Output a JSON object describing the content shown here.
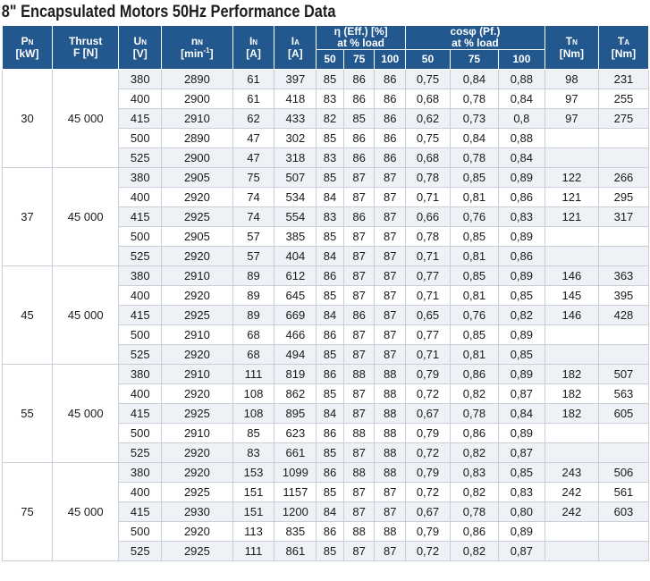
{
  "title": "8\" Encapsulated Motors 50Hz Performance Data",
  "header": {
    "pn": "P",
    "pn_sub": "N",
    "pn_unit": "[kW]",
    "thrust": "Thrust",
    "thrust_unit": "F [N]",
    "un": "U",
    "un_sub": "N",
    "un_unit": "[V]",
    "nn": "n",
    "nn_sub": "N",
    "nn_unit": "[min",
    "nn_sup": "-1",
    "nn_close": "]",
    "in": "I",
    "in_sub": "N",
    "in_unit": "[A]",
    "ia": "I",
    "ia_sub": "A",
    "ia_unit": "[A]",
    "eff": "η (Eff.) [%]",
    "eff_sub": "at % load",
    "cos": "cosφ (Pf.)",
    "cos_sub": "at % load",
    "tn": "T",
    "tn_sub": "N",
    "tn_unit": "[Nm]",
    "ta": "T",
    "ta_sub": "A",
    "ta_unit": "[Nm]",
    "loads": [
      "50",
      "75",
      "100"
    ]
  },
  "groups": [
    {
      "pn": "30",
      "thrust": "45 000",
      "rows": [
        [
          "380",
          "2890",
          "61",
          "397",
          "85",
          "86",
          "86",
          "0,75",
          "0,84",
          "0,88",
          "98",
          "231"
        ],
        [
          "400",
          "2900",
          "61",
          "418",
          "83",
          "86",
          "86",
          "0,68",
          "0,78",
          "0,84",
          "97",
          "255"
        ],
        [
          "415",
          "2910",
          "62",
          "433",
          "82",
          "85",
          "86",
          "0,62",
          "0,73",
          "0,8",
          "97",
          "275"
        ],
        [
          "500",
          "2890",
          "47",
          "302",
          "85",
          "86",
          "86",
          "0,75",
          "0,84",
          "0,88",
          "",
          ""
        ],
        [
          "525",
          "2900",
          "47",
          "318",
          "83",
          "86",
          "86",
          "0,68",
          "0,78",
          "0,84",
          "",
          ""
        ]
      ]
    },
    {
      "pn": "37",
      "thrust": "45 000",
      "rows": [
        [
          "380",
          "2905",
          "75",
          "507",
          "85",
          "87",
          "87",
          "0,78",
          "0,85",
          "0,89",
          "122",
          "266"
        ],
        [
          "400",
          "2920",
          "74",
          "534",
          "84",
          "87",
          "87",
          "0,71",
          "0,81",
          "0,86",
          "121",
          "295"
        ],
        [
          "415",
          "2925",
          "74",
          "554",
          "83",
          "86",
          "87",
          "0,66",
          "0,76",
          "0,83",
          "121",
          "317"
        ],
        [
          "500",
          "2905",
          "57",
          "385",
          "85",
          "87",
          "87",
          "0,78",
          "0,85",
          "0,89",
          "",
          ""
        ],
        [
          "525",
          "2920",
          "57",
          "404",
          "84",
          "87",
          "87",
          "0,71",
          "0,81",
          "0,86",
          "",
          ""
        ]
      ]
    },
    {
      "pn": "45",
      "thrust": "45 000",
      "rows": [
        [
          "380",
          "2910",
          "89",
          "612",
          "86",
          "87",
          "87",
          "0,77",
          "0,85",
          "0,89",
          "146",
          "363"
        ],
        [
          "400",
          "2920",
          "89",
          "645",
          "85",
          "87",
          "87",
          "0,71",
          "0,81",
          "0,85",
          "145",
          "395"
        ],
        [
          "415",
          "2925",
          "89",
          "669",
          "84",
          "86",
          "87",
          "0,65",
          "0,76",
          "0,82",
          "146",
          "428"
        ],
        [
          "500",
          "2910",
          "68",
          "466",
          "86",
          "87",
          "87",
          "0,77",
          "0,85",
          "0,89",
          "",
          ""
        ],
        [
          "525",
          "2920",
          "68",
          "494",
          "85",
          "87",
          "87",
          "0,71",
          "0,81",
          "0,85",
          "",
          ""
        ]
      ]
    },
    {
      "pn": "55",
      "thrust": "45 000",
      "rows": [
        [
          "380",
          "2910",
          "111",
          "819",
          "86",
          "88",
          "88",
          "0,79",
          "0,86",
          "0,89",
          "182",
          "507"
        ],
        [
          "400",
          "2920",
          "108",
          "862",
          "85",
          "87",
          "88",
          "0,72",
          "0,82",
          "0,87",
          "182",
          "563"
        ],
        [
          "415",
          "2925",
          "108",
          "895",
          "84",
          "87",
          "88",
          "0,67",
          "0,78",
          "0,84",
          "182",
          "605"
        ],
        [
          "500",
          "2910",
          "85",
          "623",
          "86",
          "88",
          "88",
          "0,79",
          "0,86",
          "0,89",
          "",
          ""
        ],
        [
          "525",
          "2920",
          "83",
          "661",
          "85",
          "87",
          "88",
          "0,72",
          "0,82",
          "0,87",
          "",
          ""
        ]
      ]
    },
    {
      "pn": "75",
      "thrust": "45 000",
      "rows": [
        [
          "380",
          "2920",
          "153",
          "1099",
          "86",
          "88",
          "88",
          "0,79",
          "0,83",
          "0,85",
          "243",
          "506"
        ],
        [
          "400",
          "2925",
          "151",
          "1157",
          "85",
          "87",
          "87",
          "0,72",
          "0,82",
          "0,83",
          "242",
          "561"
        ],
        [
          "415",
          "2930",
          "151",
          "1200",
          "84",
          "87",
          "87",
          "0,67",
          "0,78",
          "0,80",
          "242",
          "603"
        ],
        [
          "500",
          "2920",
          "113",
          "835",
          "86",
          "88",
          "88",
          "0,79",
          "0,86",
          "0,89",
          "",
          ""
        ],
        [
          "525",
          "2925",
          "111",
          "861",
          "85",
          "87",
          "87",
          "0,72",
          "0,82",
          "0,87",
          "",
          ""
        ]
      ]
    }
  ]
}
